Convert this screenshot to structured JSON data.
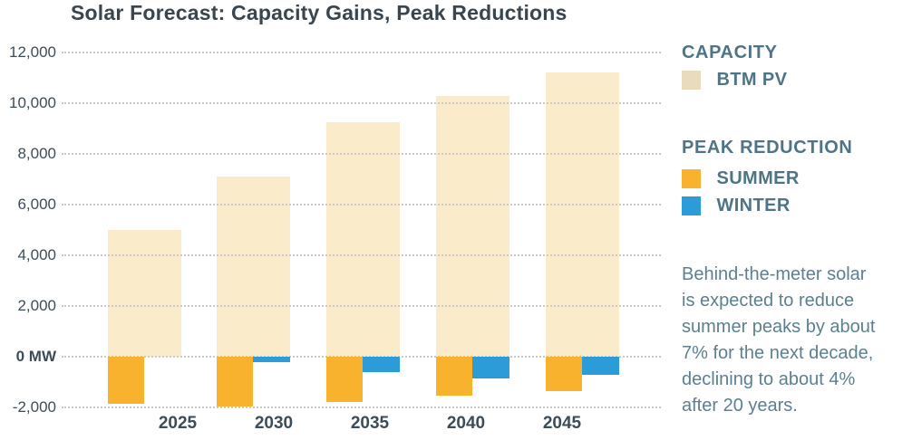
{
  "legend": {
    "capacity_header": "CAPACITY",
    "btm_pv_label": "BTM PV",
    "peak_header": "PEAK REDUCTION",
    "summer_label": "SUMMER",
    "winter_label": "WINTER"
  },
  "note": "Behind-the-meter solar\nis expected to reduce\nsummer peaks by about\n7% for the next decade,\ndeclining to about 4%\nafter 20 years.",
  "colors": {
    "title_text": "#39464F",
    "axis_text": "#3D4D57",
    "grid": "#C9C9C9",
    "btm_pv": "#FAECCB",
    "btm_pv_legend": "#E8DCBD",
    "summer": "#F9B22E",
    "winter": "#2B9CD8",
    "legend_text": "#4E7486",
    "note_text": "#5C8090"
  },
  "chart_data": {
    "type": "bar",
    "title": "Solar Forecast: Capacity Gains, Peak Reductions",
    "categories": [
      "2025",
      "2030",
      "2035",
      "2040",
      "2045"
    ],
    "series": [
      {
        "name": "BTM PV",
        "group": "CAPACITY",
        "color": "#FAECCB",
        "values": [
          5000,
          7100,
          9250,
          10300,
          11200
        ]
      },
      {
        "name": "SUMMER",
        "group": "PEAK REDUCTION",
        "color": "#F9B22E",
        "values": [
          -1850,
          -1950,
          -1800,
          -1550,
          -1350
        ]
      },
      {
        "name": "WINTER",
        "group": "PEAK REDUCTION",
        "color": "#2B9CD8",
        "values": [
          0,
          -200,
          -600,
          -850,
          -700
        ]
      }
    ],
    "unit": "MW",
    "ylim": [
      -2000,
      12000
    ],
    "ytick_step": 2000,
    "yticks": [
      {
        "value": 12000,
        "label": "12,000"
      },
      {
        "value": 10000,
        "label": "10,000"
      },
      {
        "value": 8000,
        "label": "8,000"
      },
      {
        "value": 6000,
        "label": "6,000"
      },
      {
        "value": 4000,
        "label": "4,000"
      },
      {
        "value": 2000,
        "label": "2,000"
      },
      {
        "value": 0,
        "label": "0 MW",
        "bold": true
      },
      {
        "value": -2000,
        "label": "-2,000"
      }
    ],
    "grid": "horizontal-dotted",
    "legend_position": "right"
  }
}
